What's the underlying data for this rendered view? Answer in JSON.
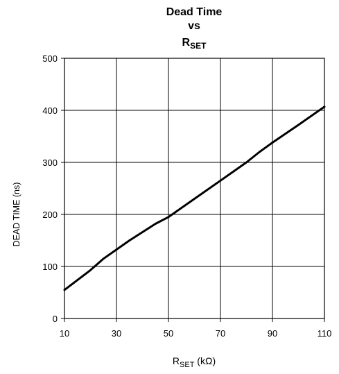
{
  "chart_data": {
    "type": "line",
    "title_lines": [
      "Dead Time",
      "vs"
    ],
    "title_r": {
      "main": "R",
      "sub": "SET"
    },
    "xlabel": {
      "main": "R",
      "sub": "SET",
      "suffix": " (kΩ)"
    },
    "ylabel": "DEAD TIME (ns)",
    "xlim": [
      10,
      110
    ],
    "ylim": [
      0,
      500
    ],
    "xticks": [
      "10",
      "30",
      "50",
      "70",
      "90",
      "110"
    ],
    "yticks": [
      "0",
      "100",
      "200",
      "300",
      "400",
      "500"
    ],
    "grid": true,
    "series": [
      {
        "color": "#000000",
        "x": [
          10,
          20,
          25,
          35,
          45,
          50,
          60,
          70,
          80,
          85,
          90,
          100,
          110
        ],
        "y": [
          55,
          93,
          115,
          150,
          182,
          195,
          230,
          265,
          300,
          320,
          338,
          372,
          407
        ]
      }
    ]
  }
}
